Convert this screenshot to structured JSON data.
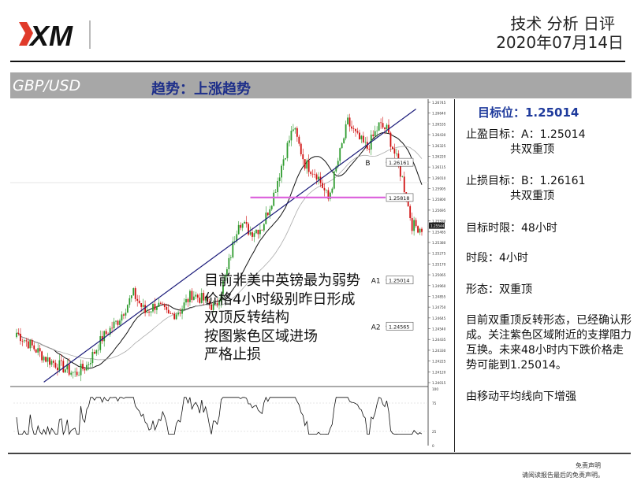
{
  "header": {
    "title": "技术 分析 日评",
    "date": "2020年07月14日",
    "logo_text": "XM"
  },
  "banner": {
    "pair": "GBP/USD",
    "trend": "趋势：上涨趋势"
  },
  "panel": {
    "target": "目标位：1.25014",
    "tp_line1": "止盈目标：A：1.25014",
    "tp_line2": "共双重顶",
    "sl_line1": "止损目标：B：1.26161",
    "sl_line2": "共双重顶",
    "horizon": "目标时限：48小时",
    "timeframe": "时段：4小时",
    "pattern": "形态：双重顶",
    "description": "目前双重顶反转形态，已经确认形成。关注紫色区域附近的支撑阻力互换。未来48小时内下跌价格走势可能到1.25014。",
    "ma_note": "由移动平均线向下增强"
  },
  "annotation": [
    "目前非美中英镑最为弱势",
    "价格4小时级别昨日形成",
    "双顶反转结构",
    "按图紫色区域进场",
    "严格止损"
  ],
  "disclaimer": {
    "line1": "免责声明",
    "line2": "请阅读报告最后的免责声明。"
  },
  "chart_data": {
    "type": "candlestick",
    "y_ticks": [
      "1.26745",
      "1.26640",
      "1.26535",
      "1.26430",
      "1.26325",
      "1.26220",
      "1.26115",
      "1.26010",
      "1.25905",
      "1.25800",
      "1.25695",
      "1.25590",
      "1.25485",
      "1.25380",
      "1.25275",
      "1.25170",
      "1.25065",
      "1.24960",
      "1.24855",
      "1.24750",
      "1.24645",
      "1.24540",
      "1.24435",
      "1.24330",
      "1.24225",
      "1.24120",
      "1.24015"
    ],
    "levels": [
      {
        "label": "B",
        "value": "1.26161",
        "color": "#888888"
      },
      {
        "label": "",
        "value": "1.25818",
        "color": "#dd66dd"
      },
      {
        "label": "A1",
        "value": "1.25014",
        "color": "#888888"
      },
      {
        "label": "A2",
        "value": "1.24565",
        "color": "#888888"
      }
    ],
    "current_price": "1.25544",
    "pattern_points": [
      {
        "label": "B",
        "value": 1.26161
      }
    ],
    "trendline": {
      "from": 1.2402,
      "to": 1.2668,
      "color": "#1b1b7a"
    },
    "oscillator": {
      "ticks": [
        "100",
        "75",
        "25",
        "0"
      ]
    },
    "up_color": "#2e9b2e",
    "down_color": "#d01010"
  }
}
